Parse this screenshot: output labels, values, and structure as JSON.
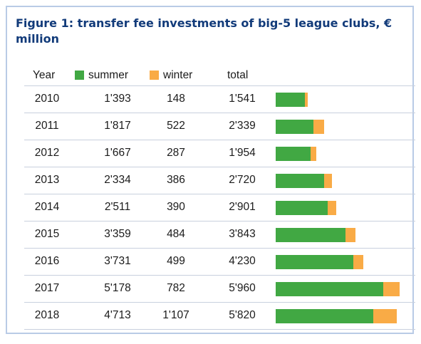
{
  "title": "Figure 1: transfer fee investments of big-5 league clubs, € million",
  "header": {
    "year": "Year",
    "summer": "summer",
    "winter": "winter",
    "total": "total"
  },
  "colors": {
    "summer": "#41a843",
    "winter": "#f9ab46",
    "title": "#123b7a",
    "border": "#b9cbe6"
  },
  "chart_data": {
    "type": "bar",
    "stacked": true,
    "orientation": "horizontal",
    "title": "Figure 1: transfer fee investments of big-5 league clubs, € million",
    "categories": [
      "2010",
      "2011",
      "2012",
      "2013",
      "2014",
      "2015",
      "2016",
      "2017",
      "2018"
    ],
    "series": [
      {
        "name": "summer",
        "values": [
          1393,
          1817,
          1667,
          2334,
          2511,
          3359,
          3731,
          5178,
          4713
        ],
        "color": "#41a843"
      },
      {
        "name": "winter",
        "values": [
          148,
          522,
          287,
          386,
          390,
          484,
          499,
          782,
          1107
        ],
        "color": "#f9ab46"
      }
    ],
    "totals": [
      1541,
      2339,
      1954,
      2720,
      2901,
      3843,
      4230,
      5960,
      5820
    ],
    "table": {
      "summer": [
        "1'393",
        "1'817",
        "1'667",
        "2'334",
        "2'511",
        "3'359",
        "3'731",
        "5'178",
        "4'713"
      ],
      "winter": [
        "148",
        "522",
        "287",
        "386",
        "390",
        "484",
        "499",
        "782",
        "1'107"
      ],
      "total": [
        "1'541",
        "2'339",
        "1'954",
        "2'720",
        "2'901",
        "3'843",
        "4'230",
        "5'960",
        "5'820"
      ]
    },
    "xlim": [
      0,
      6000
    ],
    "grid": false
  }
}
